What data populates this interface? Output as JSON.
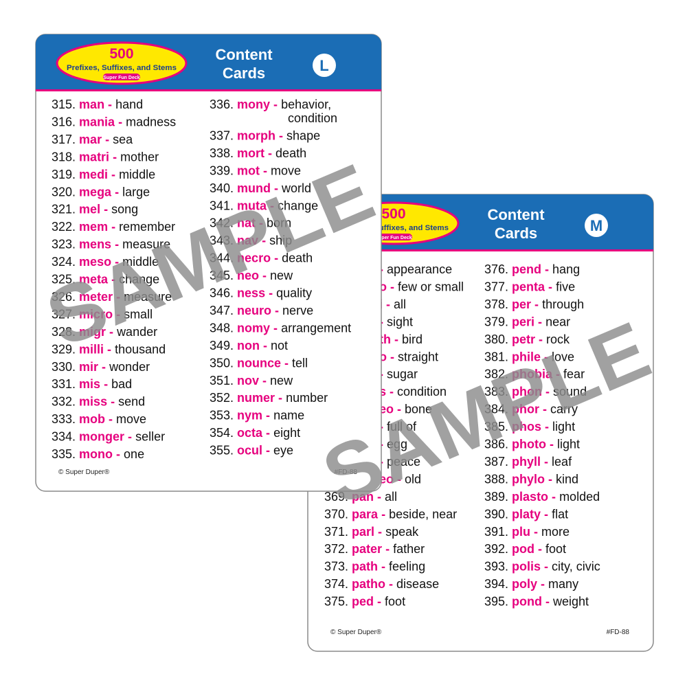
{
  "cards": [
    {
      "logo_number": "500",
      "logo_title": "Prefixes, Suffixes, and Stems",
      "logo_tag": "Super Fun Deck",
      "heading_1": "Content",
      "heading_2": "Cards",
      "letter": "L",
      "col1": [
        [
          "315.",
          "man -",
          "hand"
        ],
        [
          "316.",
          "mania -",
          "madness"
        ],
        [
          "317.",
          "mar -",
          "sea"
        ],
        [
          "318.",
          "matri -",
          "mother"
        ],
        [
          "319.",
          "medi -",
          "middle"
        ],
        [
          "320.",
          "mega -",
          "large"
        ],
        [
          "321.",
          "mel -",
          "song"
        ],
        [
          "322.",
          "mem -",
          "remember"
        ],
        [
          "323.",
          "mens -",
          "measure"
        ],
        [
          "324.",
          "meso -",
          "middle"
        ],
        [
          "325.",
          "meta -",
          "change"
        ],
        [
          "326.",
          "meter -",
          "measure"
        ],
        [
          "327.",
          "micro -",
          "small"
        ],
        [
          "328.",
          "migr -",
          "wander"
        ],
        [
          "329.",
          "milli -",
          "thousand"
        ],
        [
          "330.",
          "mir -",
          "wonder"
        ],
        [
          "331.",
          "mis -",
          "bad"
        ],
        [
          "332.",
          "miss -",
          "send"
        ],
        [
          "333.",
          "mob -",
          "move"
        ],
        [
          "334.",
          "monger -",
          "seller"
        ],
        [
          "335.",
          "mono -",
          "one"
        ]
      ],
      "col2": [
        [
          "336.",
          "mony -",
          "behavior,",
          "condition"
        ],
        [
          "337.",
          "morph -",
          "shape"
        ],
        [
          "338.",
          "mort -",
          "death"
        ],
        [
          "339.",
          "mot -",
          "move"
        ],
        [
          "340.",
          "mund -",
          "world"
        ],
        [
          "341.",
          "muta -",
          "change"
        ],
        [
          "342.",
          "nat -",
          "born"
        ],
        [
          "343.",
          "nav -",
          "ship"
        ],
        [
          "344.",
          "necro -",
          "death"
        ],
        [
          "345.",
          "neo -",
          "new"
        ],
        [
          "346.",
          "ness -",
          "quality"
        ],
        [
          "347.",
          "neuro -",
          "nerve"
        ],
        [
          "348.",
          "nomy -",
          "arrangement"
        ],
        [
          "349.",
          "non -",
          "not"
        ],
        [
          "350.",
          "nounce -",
          "tell"
        ],
        [
          "351.",
          "nov -",
          "new"
        ],
        [
          "352.",
          "numer -",
          "number"
        ],
        [
          "353.",
          "nym -",
          "name"
        ],
        [
          "354.",
          "octa -",
          "eight"
        ],
        [
          "355.",
          "ocul -",
          "eye"
        ]
      ],
      "footer_left": "© Super Duper®",
      "footer_right": "#FD-88",
      "watermark": "SAMPLE"
    },
    {
      "logo_number": "500",
      "logo_title": "Prefixes, Suffixes, and Stems",
      "logo_tag": "Super Fun Deck",
      "heading_1": "Content",
      "heading_2": "Cards",
      "letter": "M",
      "hidden_rows": [
        [
          "-",
          "appearance"
        ],
        [
          "o -",
          "few or small"
        ],
        [
          "i -",
          "all"
        ],
        [
          "-",
          "sight"
        ],
        [
          "th -",
          "bird"
        ],
        [
          "o -",
          "straight"
        ],
        [
          "-",
          "sugar"
        ],
        [
          "s -",
          "condition"
        ],
        [
          "eo -",
          "bone"
        ],
        [
          "-",
          "full of"
        ],
        [
          "-",
          "egg"
        ],
        [
          "-",
          "peace"
        ],
        [
          "eo -",
          "old"
        ]
      ],
      "col1": [
        [
          "369.",
          "pan -",
          "all"
        ],
        [
          "370.",
          "para -",
          "beside, near"
        ],
        [
          "371.",
          "parl -",
          "speak"
        ],
        [
          "372.",
          "pater -",
          "father"
        ],
        [
          "373.",
          "path -",
          "feeling"
        ],
        [
          "374.",
          "patho -",
          "disease"
        ],
        [
          "375.",
          "ped -",
          "foot"
        ]
      ],
      "col2": [
        [
          "376.",
          "pend -",
          "hang"
        ],
        [
          "377.",
          "penta -",
          "five"
        ],
        [
          "378.",
          "per -",
          "through"
        ],
        [
          "379.",
          "peri -",
          "near"
        ],
        [
          "380.",
          "petr -",
          "rock"
        ],
        [
          "381.",
          "phile -",
          "love"
        ],
        [
          "382.",
          "phobia -",
          "fear"
        ],
        [
          "383.",
          "phon -",
          "sound"
        ],
        [
          "384.",
          "phor -",
          "carry"
        ],
        [
          "385.",
          "phos -",
          "light"
        ],
        [
          "386.",
          "photo -",
          "light"
        ],
        [
          "387.",
          "phyll -",
          "leaf"
        ],
        [
          "388.",
          "phylo -",
          "kind"
        ],
        [
          "389.",
          "plasto -",
          "molded"
        ],
        [
          "390.",
          "platy -",
          "flat"
        ],
        [
          "391.",
          "plu -",
          "more"
        ],
        [
          "392.",
          "pod -",
          "foot"
        ],
        [
          "393.",
          "polis -",
          "city, civic"
        ],
        [
          "394.",
          "poly -",
          "many"
        ],
        [
          "395.",
          "pond -",
          "weight"
        ]
      ],
      "footer_left": "© Super Duper®",
      "footer_right": "#FD-88",
      "watermark": "SAMPLE"
    }
  ]
}
